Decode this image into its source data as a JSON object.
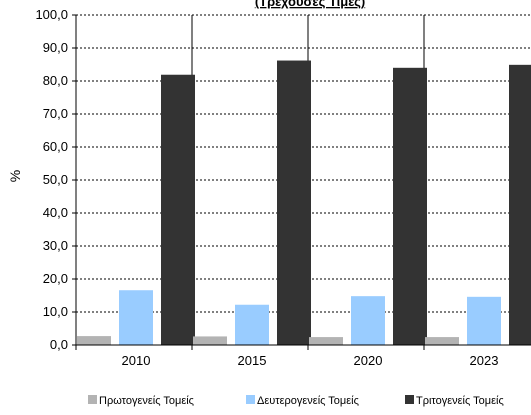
{
  "chart_data": {
    "type": "bar",
    "title": "(Τρέχουσες Τιμές)",
    "ylabel": "%",
    "xlabel": "",
    "ylim": [
      0,
      100
    ],
    "yticks": [
      0,
      10,
      20,
      30,
      40,
      50,
      60,
      70,
      80,
      90,
      100
    ],
    "ytick_labels": [
      "0,0",
      "10,0",
      "20,0",
      "30,0",
      "40,0",
      "50,0",
      "60,0",
      "70,0",
      "80,0",
      "90,0",
      "100,0"
    ],
    "categories": [
      "2010",
      "2015",
      "2020",
      "2023"
    ],
    "series": [
      {
        "name": "Πρωτογενείς  Τομείς",
        "color": "#b3b3b3",
        "values": [
          2.7,
          2.6,
          2.4,
          2.4
        ]
      },
      {
        "name": "Δευτερογενείς Τομείς",
        "color": "#99ccff",
        "values": [
          16.6,
          12.2,
          14.8,
          14.6
        ]
      },
      {
        "name": "Τριτογενείς  Τομείς",
        "color": "#333333",
        "values": [
          81.9,
          86.2,
          84.0,
          84.9
        ]
      }
    ],
    "grid": "horizontal dashed",
    "legend_position": "bottom"
  }
}
